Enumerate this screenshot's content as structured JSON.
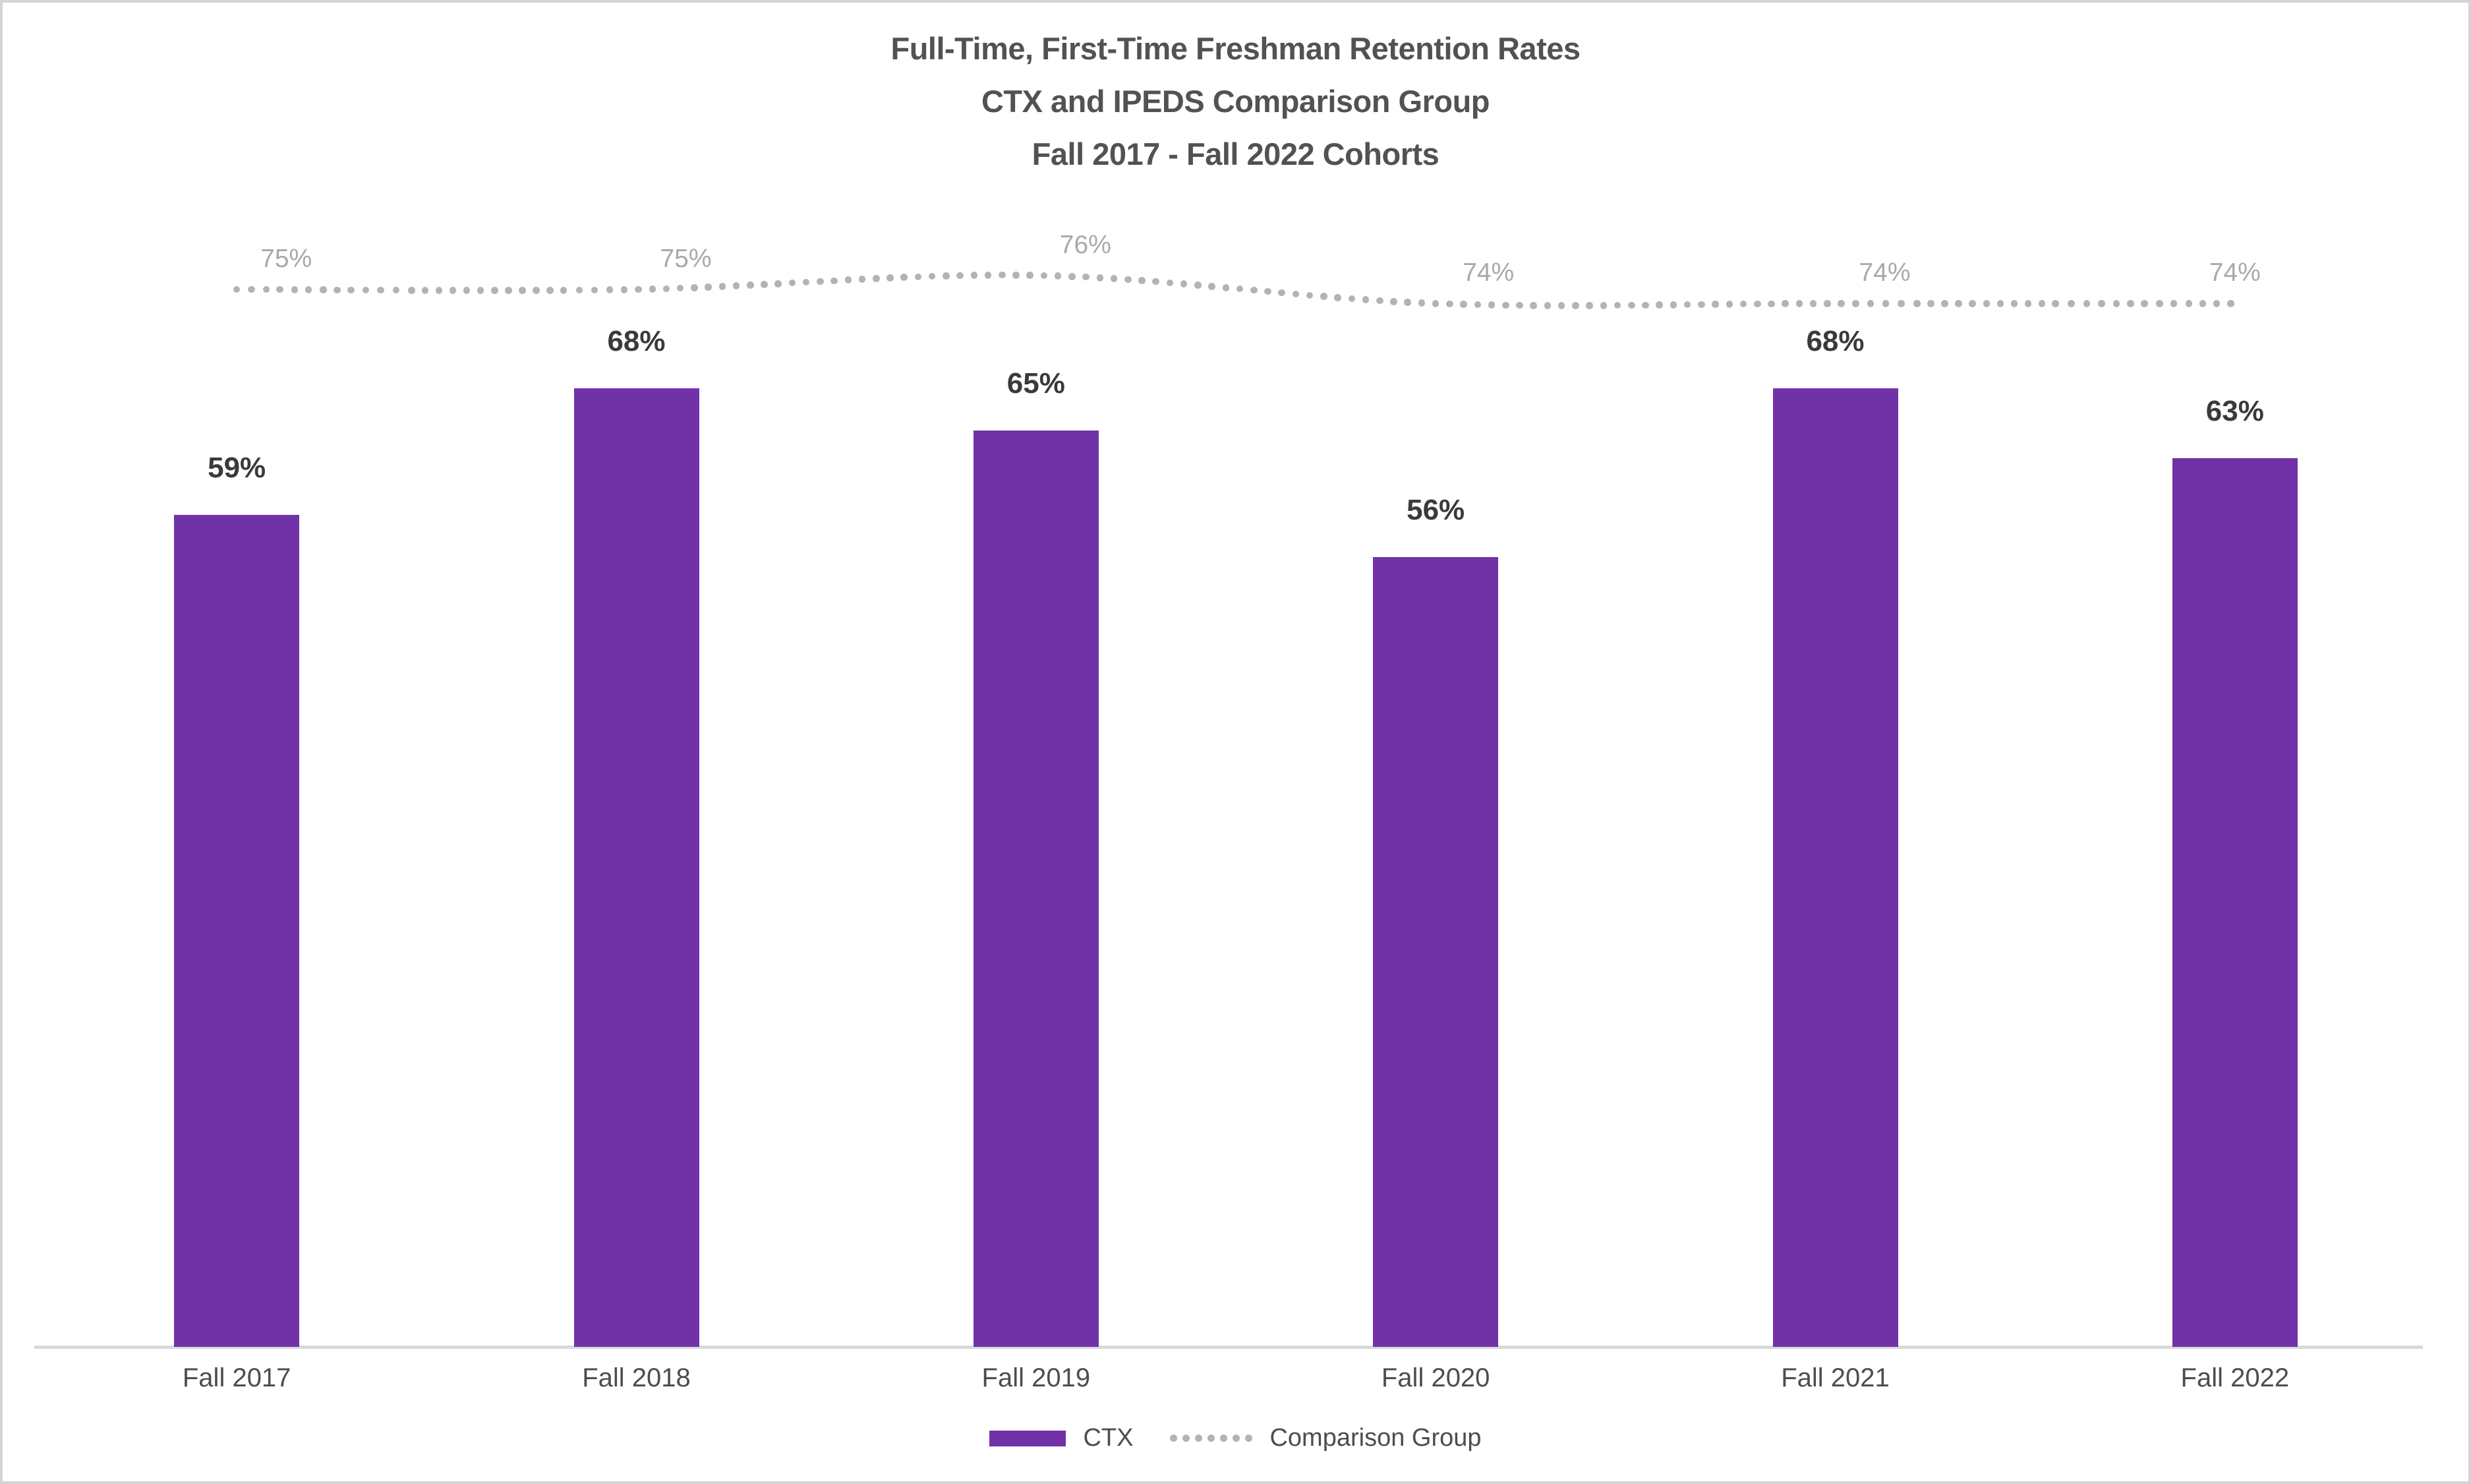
{
  "chart_data": {
    "type": "combo",
    "title_lines": [
      "Full-Time, First-Time Freshman Retention Rates",
      "CTX and IPEDS Comparison Group",
      "Fall 2017 - Fall 2022 Cohorts"
    ],
    "categories": [
      "Fall 2017",
      "Fall 2018",
      "Fall 2019",
      "Fall 2020",
      "Fall 2021",
      "Fall 2022"
    ],
    "series": [
      {
        "name": "CTX",
        "type": "bar",
        "color": "#7132A8",
        "values": [
          59,
          68,
          65,
          56,
          68,
          63
        ],
        "labels": [
          "59%",
          "68%",
          "65%",
          "56%",
          "68%",
          "63%"
        ],
        "label_color": "#3A3A3A"
      },
      {
        "name": "Comparison Group",
        "type": "dotted_line",
        "color": "#B3B3B3",
        "values": [
          75,
          75,
          76,
          74,
          74,
          74
        ],
        "labels": [
          "75%",
          "75%",
          "76%",
          "74%",
          "74%",
          "74%"
        ],
        "label_color": "#A9A9A9",
        "smoothed": true
      }
    ],
    "value_axis": {
      "min": 0,
      "max": 100,
      "unit": "percent",
      "visible": false
    },
    "category_axis": {
      "line_color": "#D9D9D9",
      "label_color": "#4D4D4D"
    },
    "grid": false,
    "legend_position": "bottom",
    "background": "#FFFFFF",
    "frame_border_color": "#D4D4D4",
    "title_color": "#525252"
  }
}
